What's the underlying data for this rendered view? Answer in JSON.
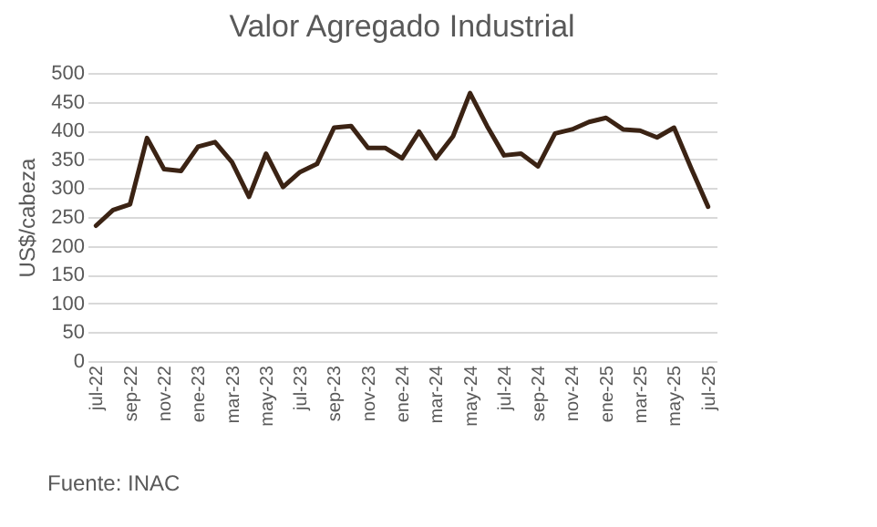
{
  "chart_data": {
    "type": "line",
    "title": "Valor Agregado Industrial",
    "ylabel": "US$/cabeza",
    "categories": [
      "jul-22",
      null,
      "sep-22",
      null,
      "nov-22",
      null,
      "ene-23",
      null,
      "mar-23",
      null,
      "may-23",
      null,
      "jul-23",
      null,
      "sep-23",
      null,
      "nov-23",
      null,
      "ene-24",
      null,
      "mar-24",
      null,
      "may-24",
      null,
      "jul-24",
      null,
      "sep-24",
      null,
      "nov-24",
      null,
      "ene-25",
      null,
      "mar-25",
      null,
      "may-25",
      null,
      "jul-25"
    ],
    "series": [
      {
        "color": "#3b2314",
        "values": [
          235,
          262,
          272,
          387,
          333,
          330,
          372,
          380,
          345,
          285,
          360,
          302,
          328,
          342,
          405,
          408,
          370,
          370,
          352,
          398,
          352,
          390,
          465,
          408,
          357,
          360,
          338,
          395,
          402,
          415,
          422,
          402,
          400,
          388,
          405,
          335,
          268
        ]
      }
    ],
    "ylim": [
      0,
      500
    ],
    "yticks": [
      0,
      50,
      100,
      150,
      200,
      250,
      300,
      350,
      400,
      450,
      500
    ],
    "grid": "y",
    "legend": false,
    "annotations": [
      "Fuente: INAC"
    ]
  }
}
